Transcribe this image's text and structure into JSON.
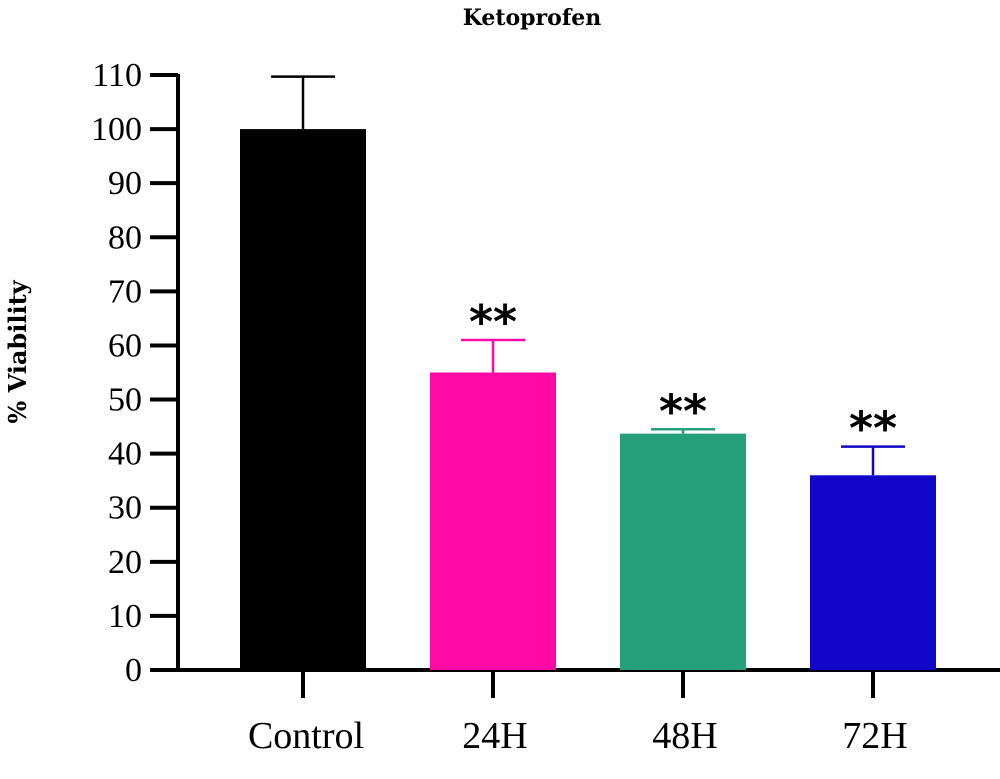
{
  "chart_data": {
    "type": "bar",
    "title": "Ketoprofen",
    "xlabel": "",
    "ylabel": "% Viability",
    "ylim": [
      0,
      110
    ],
    "yticks": [
      0,
      10,
      20,
      30,
      40,
      50,
      60,
      70,
      80,
      90,
      100,
      110
    ],
    "grid": false,
    "categories": [
      "Control",
      "24H",
      "48H",
      "72H"
    ],
    "values": [
      100,
      55,
      43.7,
      36
    ],
    "errors": [
      9.7,
      6,
      0.8,
      5.3
    ],
    "annotations": [
      "",
      "**",
      "**",
      "**"
    ],
    "colors": [
      "#000000",
      "#ff0aa4",
      "#25a07a",
      "#1206c8"
    ]
  }
}
